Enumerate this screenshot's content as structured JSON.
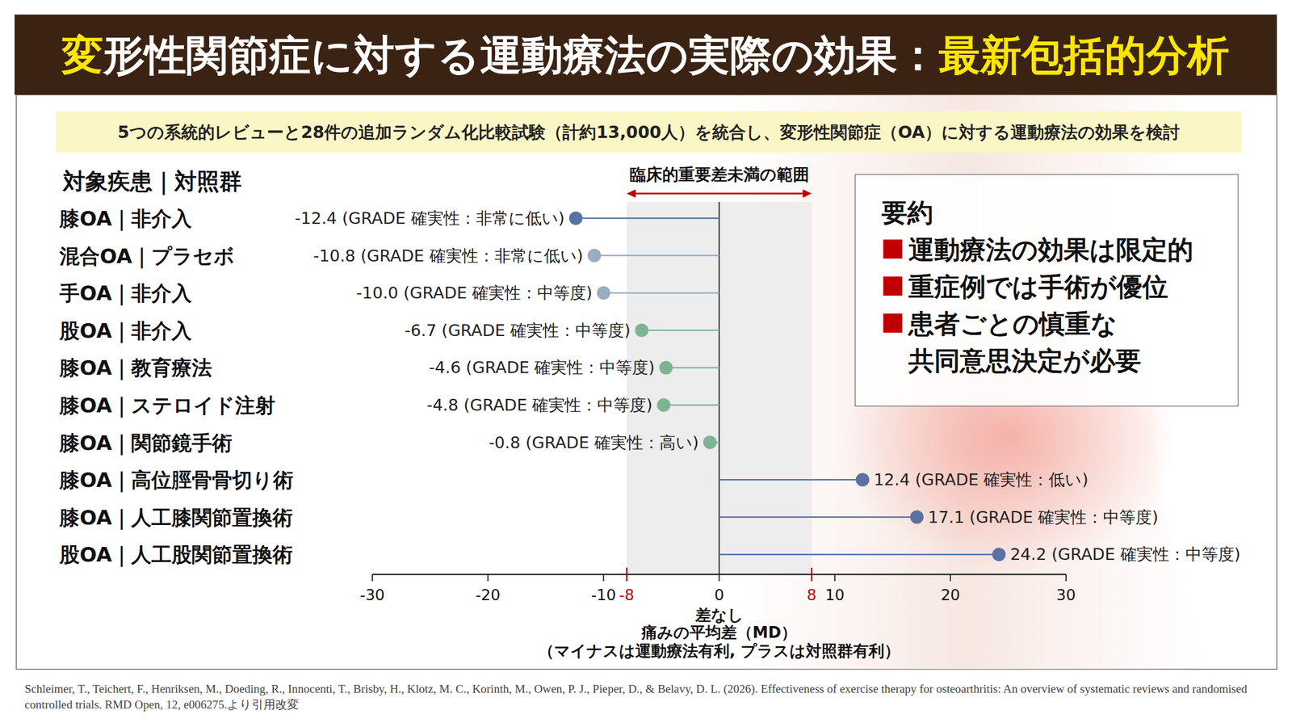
{
  "chart_data": {
    "type": "lollipop",
    "orientation": "horizontal",
    "title": [
      "変",
      "形性関節症に対する運動療法の実際の効果：",
      "最新包括的分析"
    ],
    "subtitle": "5つの系統的レビューと28件の追加ランダム化比較試験（計約13,000人）を統合し、変形性関節症（OA）に対する運動療法の効果を検討",
    "categories_title": "対象疾患｜対照群",
    "categories": [
      "膝OA｜非介入",
      "混合OA｜プラセボ",
      "手OA｜非介入",
      "股OA｜非介入",
      "膝OA｜教育療法",
      "膝OA｜ステロイド注射",
      "膝OA｜関節鏡手術",
      "膝OA｜高位脛骨骨切り術",
      "膝OA｜人工膝関節置換術",
      "股OA｜人工股関節置換術"
    ],
    "values": [
      -12.4,
      -10.8,
      -10.0,
      -6.7,
      -4.6,
      -4.8,
      -0.8,
      12.4,
      17.1,
      24.2
    ],
    "value_labels": [
      "-12.4",
      "-10.8",
      "-10.0",
      "-6.7",
      "-4.6",
      "-4.8",
      "-0.8",
      "12.4",
      "17.1",
      "24.2"
    ],
    "grade_labels": [
      "(GRADE 確実性：非常に低い)",
      "(GRADE 確実性：非常に低い)",
      "(GRADE 確実性：中等度)",
      "(GRADE 確実性：中等度)",
      "(GRADE 確実性：中等度)",
      "(GRADE 確実性：中等度)",
      "(GRADE 確実性：高い)",
      "(GRADE 確実性：低い)",
      "(GRADE 確実性：中等度)",
      "(GRADE 確実性：中等度)"
    ],
    "colors": [
      "#5a72a0",
      "#98adc0",
      "#98adc0",
      "#7fb394",
      "#7fb394",
      "#7fb394",
      "#7fb394",
      "#5a72a0",
      "#5a72a0",
      "#5a72a0"
    ],
    "data_labels": true,
    "xlim": [
      -30,
      30
    ],
    "xticks": [
      -30,
      -20,
      -10,
      0,
      10,
      20,
      30
    ],
    "band": {
      "label": "臨床的重要差未満の範囲",
      "range": [
        -8,
        8
      ],
      "ticks": [
        -8,
        8
      ]
    },
    "zero_label": "差なし",
    "x_label": "痛みの平均差（MD）",
    "x_note": "（マイナスは運動療法有利, プラスは対照群有利）",
    "summary": {
      "title": "要約",
      "items": [
        [
          "運動療法の効果は限定的"
        ],
        [
          "重症例では手術が優位"
        ],
        [
          "患者ごとの慎重な",
          "共同意思決定が必要"
        ]
      ]
    },
    "source": "Schleimer, T., Teichert, F., Henriksen, M., Doeding, R., Innocenti, T., Brisby, H., Klotz, M. C., Korinth, M., Owen, P. J., Pieper, D., & Belavy, D. L. (2026). Effectiveness of exercise therapy for osteoarthritis: An overview of systematic reviews and randomised controlled trials. RMD Open, 12, e006275.より引用改変"
  }
}
